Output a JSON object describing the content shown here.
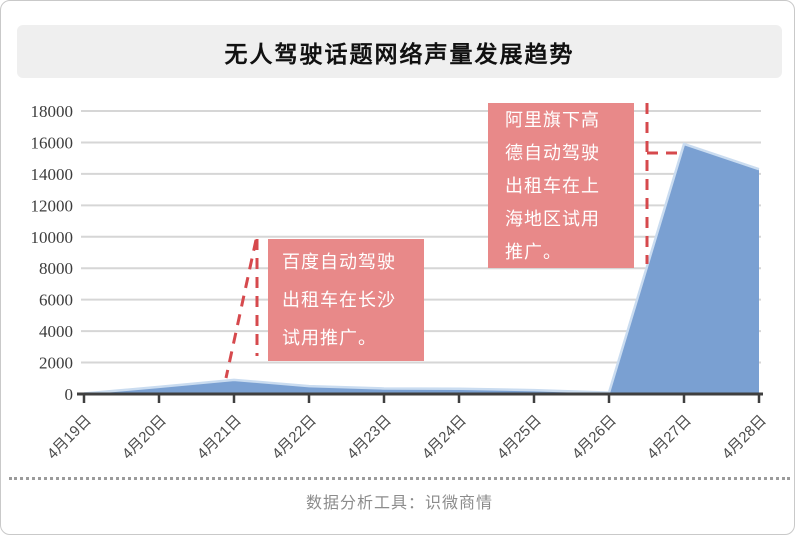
{
  "title": "无人驾驶话题网络声量发展趋势",
  "footer": "数据分析工具：识微商情",
  "annotations": [
    {
      "text": "百度自动驾驶出租车在长沙试用推广。",
      "points_to": "4月21日"
    },
    {
      "text": "阿里旗下高德自动驾驶出租车在上海地区试用推广。",
      "points_to": "4月27日"
    }
  ],
  "colors": {
    "callout_bg": "#e88989",
    "callout_text": "#ffffff",
    "dash_red": "#d6494d",
    "area_fill": "#7aa0d2",
    "area_line": "#cadcf0",
    "grid": "#d6d6d6",
    "axis": "#3f3f3f",
    "y_label": "#3c3c3c",
    "x_label": "#4c4c4c",
    "title_bg": "#efefef",
    "footer_text": "#8c8c8c"
  },
  "chart_data": {
    "type": "area",
    "title": "无人驾驶话题网络声量发展趋势",
    "categories": [
      "4月19日",
      "4月20日",
      "4月21日",
      "4月22日",
      "4月23日",
      "4月24日",
      "4月25日",
      "4月26日",
      "4月27日",
      "4月28日"
    ],
    "values": [
      30,
      450,
      900,
      500,
      350,
      330,
      250,
      90,
      15900,
      14300
    ],
    "xlabel": "",
    "ylabel": "",
    "ylim": [
      0,
      18000
    ],
    "ytick_step": 2000,
    "grid": true,
    "legend": "none"
  }
}
